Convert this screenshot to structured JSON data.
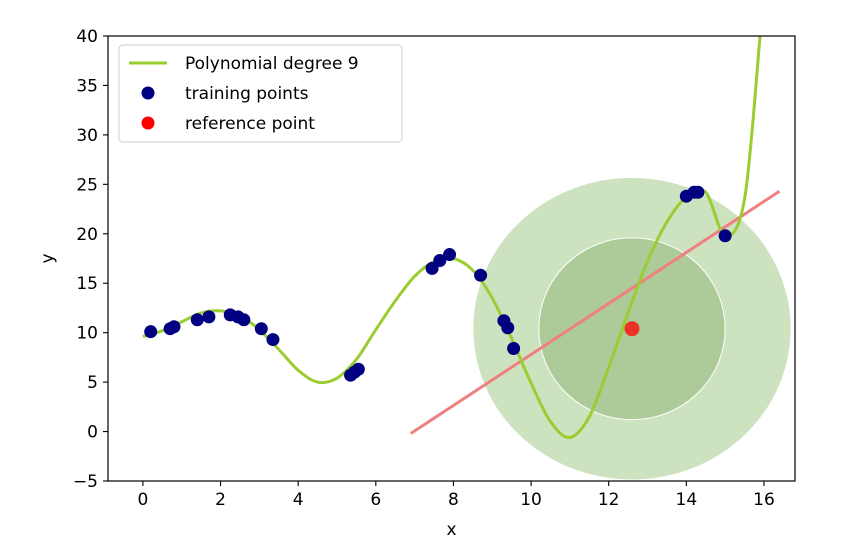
{
  "chart_data": {
    "type": "scatter",
    "xlabel": "x",
    "ylabel": "y",
    "xlim": [
      -0.9,
      16.8
    ],
    "ylim": [
      -5,
      40
    ],
    "xticks": [
      0,
      2,
      4,
      6,
      8,
      10,
      12,
      14,
      16
    ],
    "yticks": [
      -5,
      0,
      5,
      10,
      15,
      20,
      25,
      30,
      35,
      40
    ],
    "tick_labels_y": [
      "−5",
      "0",
      "5",
      "10",
      "15",
      "20",
      "25",
      "30",
      "35",
      "40"
    ],
    "grid": false,
    "legend_position": "top-left",
    "legend": [
      {
        "label": "Polynomial degree 9",
        "kind": "line",
        "color": "#9acd32"
      },
      {
        "label": "training points",
        "kind": "marker",
        "color": "#000080"
      },
      {
        "label": "reference point",
        "kind": "marker",
        "color": "#ff0000"
      }
    ],
    "polynomial_curve": {
      "name": "Polynomial degree 9",
      "color": "#9acd32",
      "x": [
        0,
        0.5,
        1,
        1.5,
        2,
        2.5,
        3,
        3.5,
        4,
        4.5,
        5,
        5.5,
        6,
        6.5,
        7,
        7.5,
        8,
        8.5,
        9,
        9.5,
        10,
        10.5,
        11,
        11.5,
        12,
        12.5,
        13,
        13.5,
        14,
        14.5,
        15,
        15.5,
        15.9
      ],
      "y": [
        9.6,
        10.2,
        11.1,
        12.0,
        12.2,
        11.7,
        10.3,
        8.3,
        6.2,
        5.0,
        5.4,
        7.3,
        10.3,
        13.2,
        15.7,
        17.2,
        17.5,
        16.3,
        13.5,
        9.4,
        4.9,
        1.0,
        -0.6,
        1.5,
        6.5,
        12.0,
        17.2,
        21.2,
        23.7,
        24.2,
        19.8,
        23.5,
        40.0
      ]
    },
    "training_points": {
      "name": "training points",
      "color": "#000080",
      "x": [
        0.2,
        0.7,
        0.8,
        1.4,
        1.7,
        2.25,
        2.45,
        2.6,
        3.05,
        3.35,
        5.35,
        5.45,
        5.55,
        7.45,
        7.65,
        7.9,
        8.7,
        9.3,
        9.4,
        9.55,
        14.0,
        14.2,
        14.3,
        15.0
      ],
      "y": [
        10.1,
        10.4,
        10.6,
        11.3,
        11.6,
        11.8,
        11.6,
        11.3,
        10.4,
        9.3,
        5.7,
        6.0,
        6.3,
        16.5,
        17.3,
        17.9,
        15.8,
        11.2,
        10.5,
        8.4,
        23.8,
        24.2,
        24.2,
        19.8
      ]
    },
    "reference_point": {
      "name": "reference point",
      "color": "#ff0000",
      "x": 12.6,
      "y": 10.4
    },
    "tangent_line": {
      "color": "#f08080",
      "x": [
        6.9,
        16.4
      ],
      "y": [
        -0.2,
        24.3
      ]
    },
    "neighborhoods": [
      {
        "x_radius": 4.1,
        "y_radius": 15.3,
        "color": "#c8dfb7"
      },
      {
        "x_radius": 2.4,
        "y_radius": 9.2,
        "color": "#a9c994"
      }
    ]
  }
}
